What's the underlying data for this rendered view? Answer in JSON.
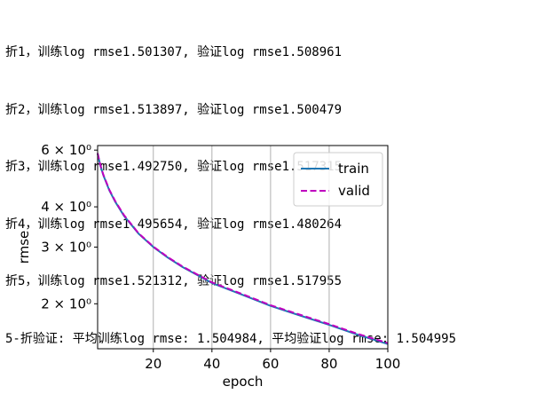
{
  "output": {
    "lines": [
      "折1，训练log rmse1.501307, 验证log rmse1.508961",
      "折2，训练log rmse1.513897, 验证log rmse1.500479",
      "折3，训练log rmse1.492750, 验证log rmse1.517315",
      "折4，训练log rmse1.495654, 验证log rmse1.480264",
      "折5，训练log rmse1.521312, 验证log rmse1.517955",
      "5-折验证: 平均训练log rmse: 1.504984, 平均验证log rmse: 1.504995"
    ]
  },
  "chart_data": {
    "type": "line",
    "xlabel": "epoch",
    "ylabel": "rmse",
    "xscale": "linear",
    "yscale": "log",
    "xlim": [
      1,
      100
    ],
    "ylim": [
      1.45,
      6.2
    ],
    "xticks": [
      20,
      40,
      60,
      80,
      100
    ],
    "yticks": [
      {
        "value": 2,
        "label": "2 × 10⁰"
      },
      {
        "value": 3,
        "label": "3 × 10⁰"
      },
      {
        "value": 4,
        "label": "4 × 10⁰"
      },
      {
        "value": 6,
        "label": "6 × 10⁰"
      }
    ],
    "grid": "x",
    "legend_position": "top-right",
    "x": [
      1,
      2,
      3,
      5,
      7,
      10,
      15,
      20,
      25,
      30,
      40,
      50,
      60,
      70,
      80,
      90,
      100
    ],
    "series": [
      {
        "name": "train",
        "color": "#1f77b4",
        "dash": "solid",
        "values": [
          5.85,
          5.35,
          5.0,
          4.5,
          4.15,
          3.75,
          3.3,
          3.0,
          2.78,
          2.6,
          2.32,
          2.14,
          1.97,
          1.84,
          1.72,
          1.6,
          1.5
        ]
      },
      {
        "name": "valid",
        "color": "#bf00bf",
        "dash": "dashed",
        "values": [
          5.87,
          5.37,
          5.02,
          4.52,
          4.17,
          3.77,
          3.31,
          3.01,
          2.79,
          2.61,
          2.33,
          2.15,
          1.98,
          1.85,
          1.73,
          1.61,
          1.51
        ]
      }
    ]
  }
}
